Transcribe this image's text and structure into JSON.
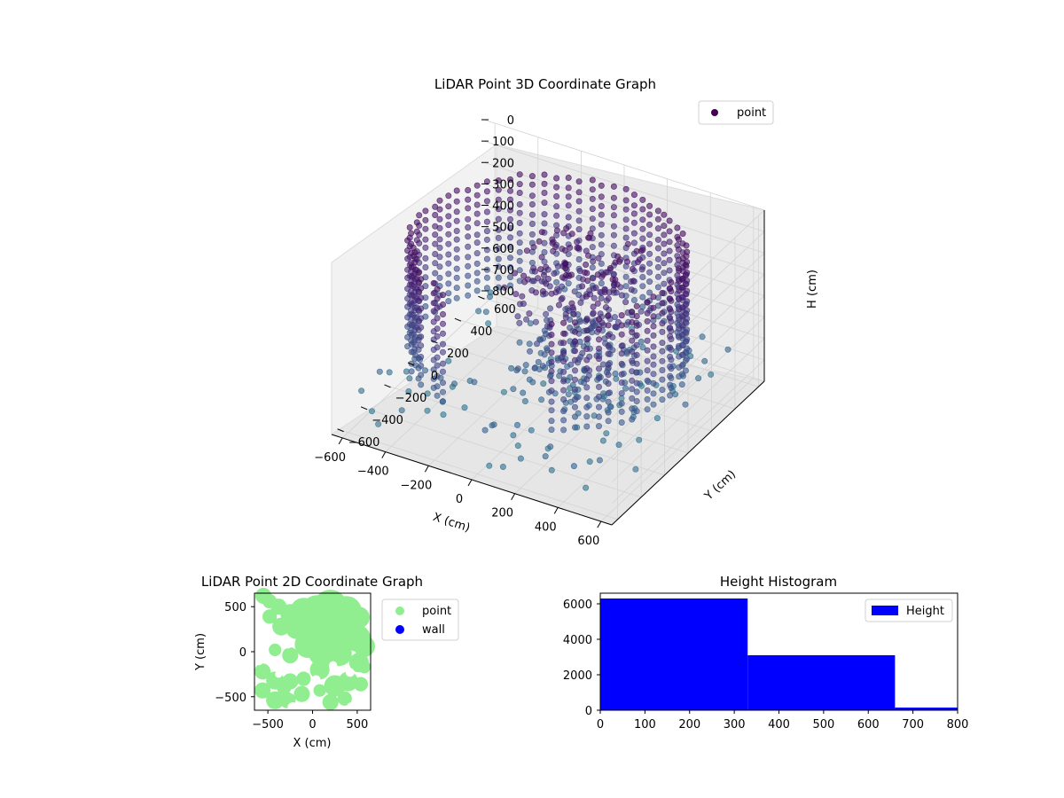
{
  "chart_data": [
    {
      "type": "scatter3d",
      "title": "LiDAR Point 3D Coordinate Graph",
      "xlabel": "X (cm)",
      "ylabel": "Y (cm)",
      "zlabel": "H (cm)",
      "xlim": [
        -650,
        650
      ],
      "ylim": [
        -650,
        650
      ],
      "zlim": [
        800,
        0
      ],
      "xticks": [
        "−600",
        "−400",
        "−200",
        "0",
        "200",
        "400",
        "600"
      ],
      "yticks": [
        "−600",
        "−400",
        "−200",
        "0",
        "200",
        "400",
        "600"
      ],
      "zticks": [
        "0",
        "100",
        "200",
        "300",
        "400",
        "500",
        "600",
        "700",
        "800"
      ],
      "legend": [
        {
          "label": "point",
          "color": "#440154"
        }
      ],
      "legend_position": "top-right",
      "colormap": "viridis",
      "grid": true
    },
    {
      "type": "scatter",
      "title": "LiDAR Point 2D Coordinate Graph",
      "xlabel": "X (cm)",
      "ylabel": "Y (cm)",
      "xlim": [
        -650,
        650
      ],
      "ylim": [
        -650,
        650
      ],
      "xticks": [
        "−500",
        "0",
        "500"
      ],
      "yticks": [
        "500",
        "0",
        "−500"
      ],
      "legend": [
        {
          "label": "point",
          "color": "#90ee90"
        },
        {
          "label": "wall",
          "color": "#0000ff"
        }
      ],
      "legend_position": "outside-right"
    },
    {
      "type": "bar",
      "title": "Height Histogram",
      "xlim": [
        0,
        800
      ],
      "ylim": [
        0,
        6600
      ],
      "xticks": [
        "0",
        "100",
        "200",
        "300",
        "400",
        "500",
        "600",
        "700",
        "800"
      ],
      "yticks": [
        "0",
        "2000",
        "4000",
        "6000"
      ],
      "bins": [
        [
          0,
          330
        ],
        [
          330,
          660
        ],
        [
          660,
          800
        ]
      ],
      "values": [
        6300,
        3100,
        150
      ],
      "legend": [
        {
          "label": "Height",
          "color": "#0000ff"
        }
      ],
      "legend_position": "top-right",
      "color": "#0000ff"
    }
  ]
}
